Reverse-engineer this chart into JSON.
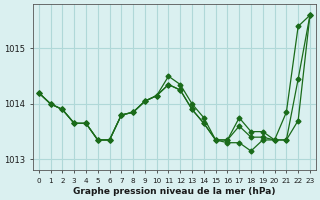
{
  "title": "Graphe pression niveau de la mer (hPa)",
  "bg_color": "#daf0f0",
  "grid_color": "#b0d8d8",
  "line_color": "#1a6b1a",
  "x_labels": [
    "0",
    "1",
    "2",
    "3",
    "4",
    "5",
    "6",
    "7",
    "8",
    "9",
    "10",
    "11",
    "12",
    "13",
    "14",
    "15",
    "16",
    "17",
    "18",
    "19",
    "20",
    "21",
    "22",
    "23"
  ],
  "series1": [
    1014.2,
    1014.0,
    1013.9,
    1013.65,
    1013.65,
    1013.35,
    1013.35,
    1013.8,
    1013.85,
    1014.05,
    1014.15,
    1014.5,
    1014.35,
    1014.0,
    1013.75,
    1013.35,
    1013.3,
    1013.3,
    1013.15,
    1013.35,
    1013.35,
    1013.85,
    1015.4,
    1015.6
  ],
  "series2": [
    1014.2,
    1014.0,
    1013.9,
    1013.65,
    1013.65,
    1013.35,
    1013.35,
    1013.8,
    1013.85,
    1014.05,
    1014.15,
    1014.35,
    1014.25,
    1013.9,
    1013.65,
    1013.35,
    1013.35,
    1013.75,
    1013.5,
    1013.5,
    1013.35,
    1013.35,
    1014.45,
    1015.6
  ],
  "series3": [
    1014.2,
    1014.0,
    1013.9,
    1013.65,
    1013.65,
    1013.35,
    1013.35,
    1013.8,
    1013.85,
    1014.05,
    1014.15,
    1014.35,
    1014.25,
    1013.9,
    1013.65,
    1013.35,
    1013.35,
    1013.6,
    1013.4,
    1013.4,
    1013.35,
    1013.35,
    1013.7,
    1015.6
  ],
  "ylim_min": 1012.8,
  "ylim_max": 1015.8,
  "yticks": [
    1013,
    1014,
    1015
  ]
}
